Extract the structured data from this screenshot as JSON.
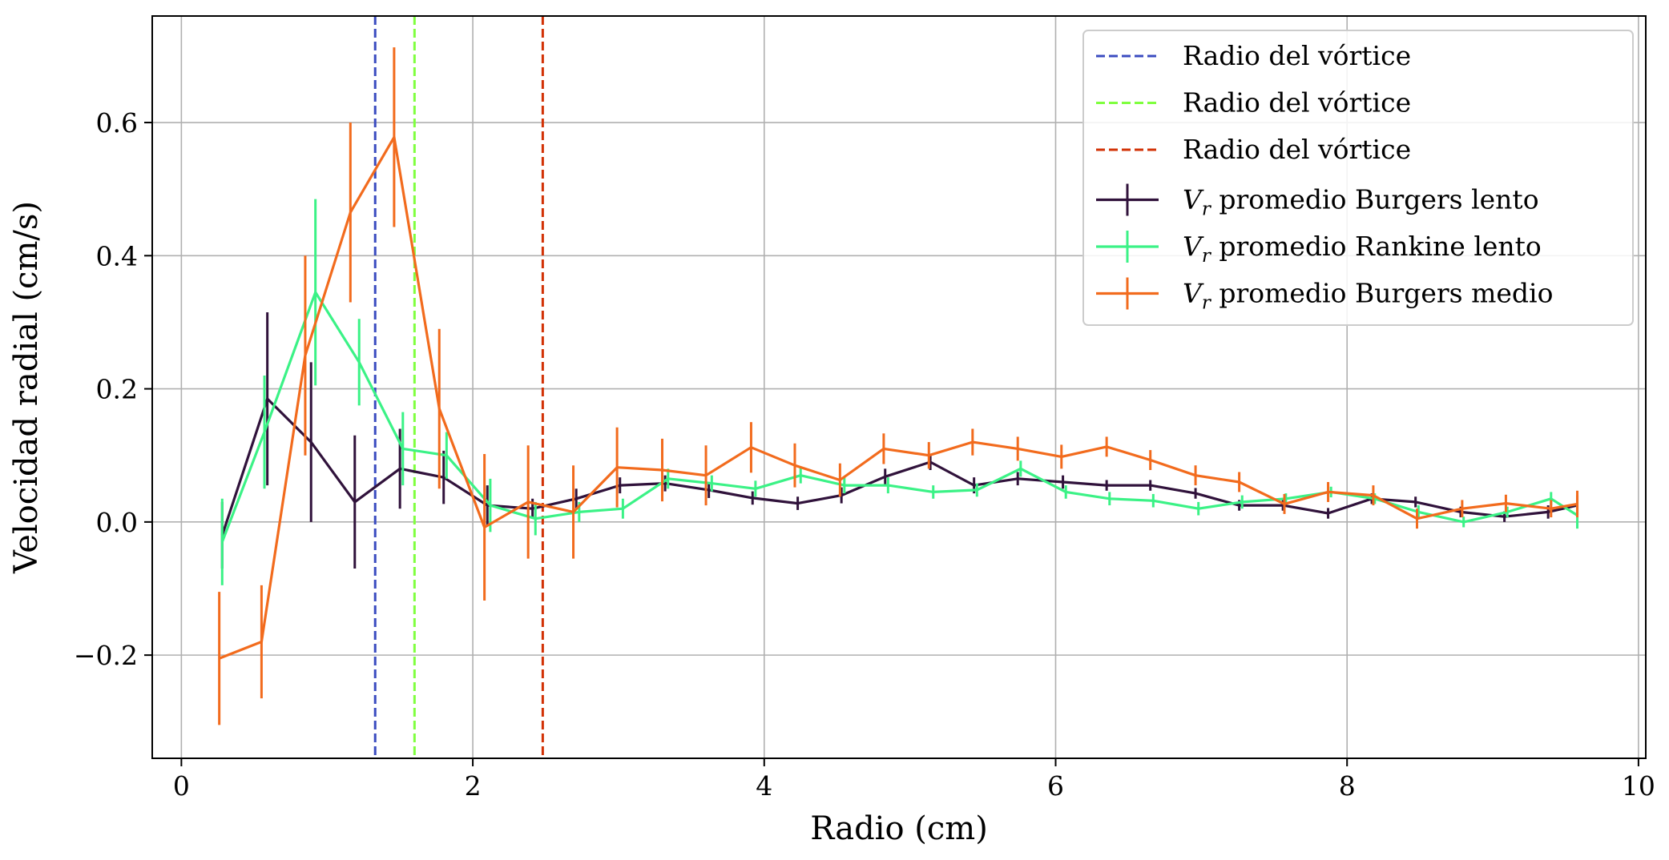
{
  "chart_data": {
    "type": "line",
    "xlabel": "Radio (cm)",
    "ylabel": "Velocidad radial (cm/s)",
    "xlim": [
      -0.2,
      10.05
    ],
    "ylim": [
      -0.355,
      0.76
    ],
    "xticks": [
      0,
      2,
      4,
      6,
      8,
      10
    ],
    "xtick_labels": [
      "0",
      "2",
      "4",
      "6",
      "8",
      "10"
    ],
    "yticks": [
      -0.2,
      0.0,
      0.2,
      0.4,
      0.6
    ],
    "ytick_labels": [
      "−0.2",
      "0.0",
      "0.2",
      "0.4",
      "0.6"
    ],
    "grid": true,
    "legend_position": "top-right",
    "vlines": [
      {
        "label": "Radio del vórtice",
        "x": 1.33,
        "color": "#3b4cc0",
        "style": "dashed"
      },
      {
        "label": "Radio del vórtice",
        "x": 1.6,
        "color": "#7fff3f",
        "style": "dashed"
      },
      {
        "label": "Radio del vórtice",
        "x": 2.48,
        "color": "#d23105",
        "style": "dashed"
      }
    ],
    "series": [
      {
        "name": "promedio Burgers lento",
        "name_prefix": "V",
        "name_sub": "r",
        "color": "#30123b",
        "x": [
          0.28,
          0.59,
          0.89,
          1.19,
          1.5,
          1.8,
          2.1,
          2.41,
          2.71,
          3.01,
          3.32,
          3.62,
          3.92,
          4.23,
          4.53,
          4.83,
          5.14,
          5.44,
          5.74,
          6.05,
          6.35,
          6.65,
          6.96,
          7.26,
          7.56,
          7.87,
          8.17,
          8.47,
          8.78,
          9.08,
          9.38,
          9.58
        ],
        "y": [
          -0.02,
          0.185,
          0.12,
          0.03,
          0.08,
          0.067,
          0.025,
          0.02,
          0.035,
          0.055,
          0.058,
          0.048,
          0.036,
          0.028,
          0.04,
          0.068,
          0.09,
          0.055,
          0.065,
          0.06,
          0.055,
          0.055,
          0.043,
          0.025,
          0.025,
          0.013,
          0.035,
          0.03,
          0.015,
          0.008,
          0.015,
          0.025
        ],
        "err": [
          0.05,
          0.13,
          0.12,
          0.1,
          0.06,
          0.04,
          0.03,
          0.015,
          0.015,
          0.012,
          0.012,
          0.012,
          0.01,
          0.01,
          0.012,
          0.012,
          0.012,
          0.012,
          0.01,
          0.01,
          0.008,
          0.008,
          0.008,
          0.008,
          0.008,
          0.008,
          0.008,
          0.008,
          0.008,
          0.008,
          0.01,
          0.015
        ]
      },
      {
        "name": "promedio Rankine lento",
        "name_prefix": "V",
        "name_sub": "r",
        "color": "#3bf286",
        "x": [
          0.28,
          0.57,
          0.92,
          1.22,
          1.52,
          1.82,
          2.12,
          2.43,
          2.73,
          3.03,
          3.34,
          3.64,
          3.94,
          4.25,
          4.55,
          4.85,
          5.16,
          5.46,
          5.76,
          6.07,
          6.37,
          6.67,
          6.98,
          7.28,
          7.58,
          7.89,
          8.19,
          8.49,
          8.8,
          9.1,
          9.4,
          9.58
        ],
        "y": [
          -0.03,
          0.135,
          0.345,
          0.24,
          0.11,
          0.1,
          0.025,
          0.005,
          0.015,
          0.02,
          0.065,
          0.058,
          0.05,
          0.07,
          0.055,
          0.055,
          0.045,
          0.048,
          0.08,
          0.045,
          0.035,
          0.032,
          0.02,
          0.03,
          0.035,
          0.045,
          0.035,
          0.015,
          0.0,
          0.015,
          0.035,
          0.01
        ],
        "err": [
          0.065,
          0.085,
          0.14,
          0.065,
          0.055,
          0.035,
          0.04,
          0.025,
          0.015,
          0.015,
          0.015,
          0.012,
          0.012,
          0.012,
          0.012,
          0.012,
          0.01,
          0.01,
          0.012,
          0.01,
          0.01,
          0.01,
          0.01,
          0.01,
          0.008,
          0.008,
          0.008,
          0.01,
          0.008,
          0.008,
          0.01,
          0.02
        ]
      },
      {
        "name": "promedio Burgers medio",
        "name_prefix": "V",
        "name_sub": "r",
        "color": "#f26b1d",
        "x": [
          0.26,
          0.55,
          0.85,
          1.16,
          1.46,
          1.77,
          2.08,
          2.38,
          2.69,
          2.99,
          3.3,
          3.6,
          3.91,
          4.21,
          4.52,
          4.82,
          5.13,
          5.43,
          5.74,
          6.04,
          6.35,
          6.65,
          6.96,
          7.26,
          7.57,
          7.87,
          8.18,
          8.48,
          8.79,
          9.09,
          9.4,
          9.58
        ],
        "y": [
          -0.205,
          -0.18,
          0.25,
          0.465,
          0.578,
          0.17,
          -0.008,
          0.03,
          0.015,
          0.082,
          0.078,
          0.07,
          0.112,
          0.085,
          0.063,
          0.11,
          0.1,
          0.12,
          0.11,
          0.098,
          0.113,
          0.093,
          0.07,
          0.06,
          0.027,
          0.045,
          0.04,
          0.005,
          0.02,
          0.028,
          0.02,
          0.027
        ],
        "err": [
          0.1,
          0.085,
          0.15,
          0.135,
          0.135,
          0.12,
          0.11,
          0.085,
          0.07,
          0.06,
          0.047,
          0.045,
          0.038,
          0.033,
          0.025,
          0.023,
          0.02,
          0.02,
          0.018,
          0.018,
          0.015,
          0.015,
          0.015,
          0.015,
          0.015,
          0.015,
          0.015,
          0.015,
          0.013,
          0.013,
          0.013,
          0.02
        ]
      }
    ]
  }
}
